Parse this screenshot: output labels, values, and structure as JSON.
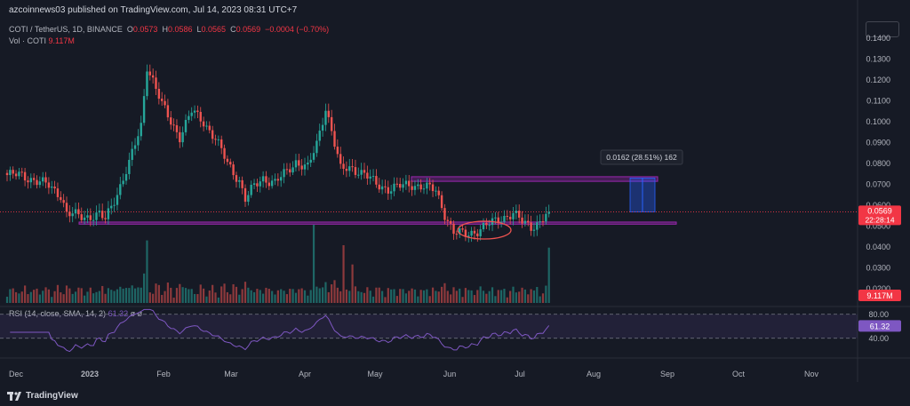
{
  "header": {
    "title": "azcoinnews03 published on TradingView.com, Jul 14, 2023 08:31 UTC+7",
    "symbol": "COTI / TetherUS, 1D, BINANCE",
    "o_label": "O",
    "o_value": "0.0573",
    "h_label": "H",
    "h_value": "0.0586",
    "l_label": "L",
    "l_value": "0.0565",
    "c_label": "C",
    "c_value": "0.0569",
    "change": "−0.0004 (−0.70%)",
    "vol_label": "Vol · COTI",
    "vol_value": "9.117M"
  },
  "rsi": {
    "label": "RSI (14, close, SMA, 14, 2)",
    "value": "61.32",
    "ticks": [
      "80.00",
      "40.00"
    ],
    "badge": "61.32"
  },
  "price_badge": {
    "price": "0.0569",
    "countdown": "22:28:14",
    "vol": "9.117M"
  },
  "measure_label": "0.0162 (28.51%) 162",
  "footer": {
    "brand": "TradingView"
  },
  "colors": {
    "up": "#26a69a",
    "down": "#ef5350",
    "bg": "#161a25",
    "rsi": "#7e57c2",
    "zone": "#9c27b0",
    "measure": "#2962ff"
  },
  "chart_data": {
    "type": "candlestick",
    "x_ticks": [
      "Dec",
      "2023",
      "Feb",
      "Mar",
      "Apr",
      "May",
      "Jun",
      "Jul",
      "Aug",
      "Sep",
      "Oct",
      "Nov"
    ],
    "y_ticks": [
      "0.1400",
      "0.1300",
      "0.1200",
      "0.1100",
      "0.1000",
      "0.0900",
      "0.0800",
      "0.0700",
      "0.0600",
      "0.0500",
      "0.0400",
      "0.0300",
      "0.0200"
    ],
    "ylim": [
      0.012,
      0.143
    ],
    "price_anchors": [
      [
        0,
        0.0745
      ],
      [
        5,
        0.0745
      ],
      [
        10,
        0.0715
      ],
      [
        14,
        0.0695
      ],
      [
        18,
        0.065
      ],
      [
        20,
        0.056
      ],
      [
        26,
        0.0545
      ],
      [
        31,
        0.0555
      ],
      [
        33,
        0.053
      ],
      [
        37,
        0.066
      ],
      [
        41,
        0.08
      ],
      [
        45,
        0.098
      ],
      [
        47,
        0.127
      ],
      [
        49,
        0.12
      ],
      [
        52,
        0.108
      ],
      [
        55,
        0.1
      ],
      [
        58,
        0.093
      ],
      [
        62,
        0.105
      ],
      [
        66,
        0.1
      ],
      [
        70,
        0.092
      ],
      [
        74,
        0.08
      ],
      [
        78,
        0.072
      ],
      [
        80,
        0.063
      ],
      [
        83,
        0.069
      ],
      [
        86,
        0.073
      ],
      [
        90,
        0.071
      ],
      [
        94,
        0.076
      ],
      [
        97,
        0.081
      ],
      [
        101,
        0.078
      ],
      [
        104,
        0.089
      ],
      [
        107,
        0.107
      ],
      [
        109,
        0.096
      ],
      [
        112,
        0.077
      ],
      [
        116,
        0.078
      ],
      [
        120,
        0.075
      ],
      [
        124,
        0.07
      ],
      [
        128,
        0.068
      ],
      [
        132,
        0.069
      ],
      [
        136,
        0.07
      ],
      [
        140,
        0.069
      ],
      [
        144,
        0.067
      ],
      [
        147,
        0.056
      ],
      [
        150,
        0.047
      ],
      [
        154,
        0.046
      ],
      [
        158,
        0.048
      ],
      [
        162,
        0.051
      ],
      [
        166,
        0.054
      ],
      [
        170,
        0.056
      ],
      [
        173,
        0.052
      ],
      [
        176,
        0.05
      ],
      [
        179,
        0.052
      ],
      [
        182,
        0.0569
      ]
    ],
    "price_zone": [
      0.052,
      0.051
    ],
    "resistance_zone": [
      0.0737,
      0.0715
    ],
    "measure": {
      "from": 0.0569,
      "to": 0.0731,
      "label": "0.0162 (28.51%) 162"
    },
    "volume_peak": "9.117M",
    "rsi_levels": [
      80,
      40
    ],
    "rsi_last": 61.32
  }
}
